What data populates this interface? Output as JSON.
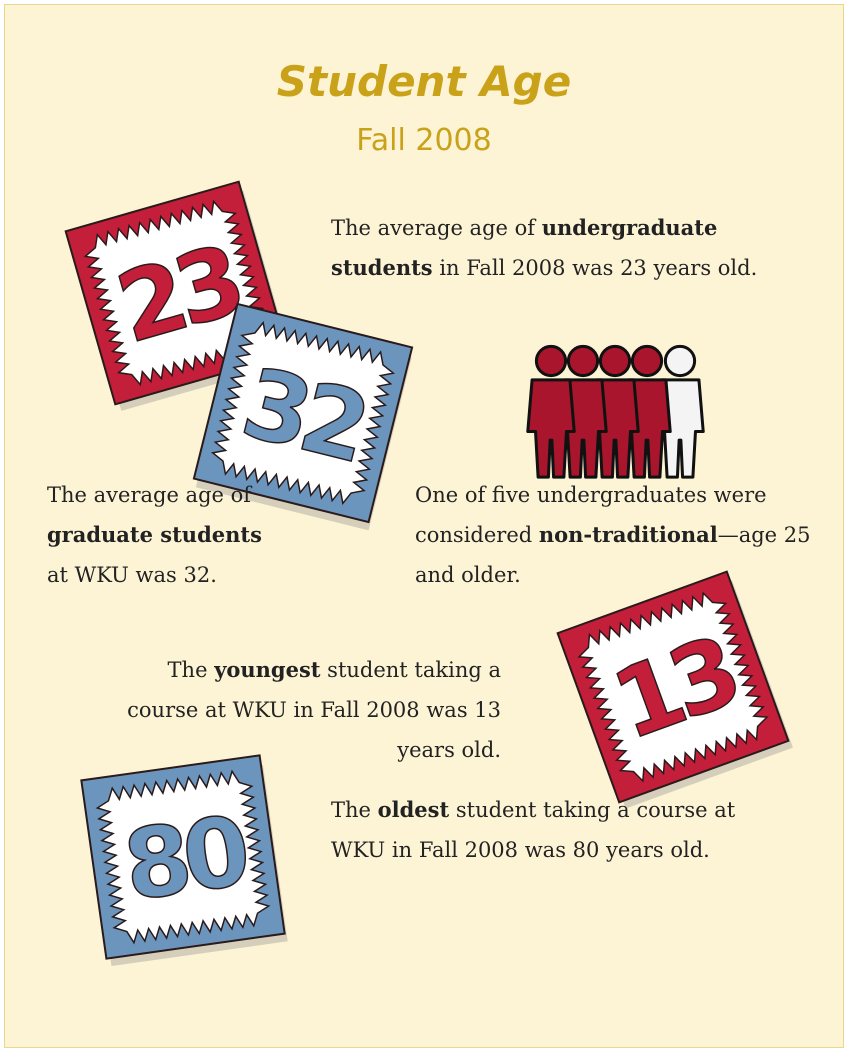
{
  "header": {
    "title": "Student Age",
    "subtitle": "Fall 2008"
  },
  "facts": [
    {
      "badge": 23,
      "before": "The average age of ",
      "bold": "undergraduate students",
      "after": " in Fall 2008 was 23 years old."
    },
    {
      "badge": 32,
      "before": "The average age of ",
      "bold": "graduate students",
      "after": " at WKU was 32."
    },
    {
      "before": "One of five undergraduates were considered ",
      "bold": "non-traditional",
      "after": "—age 25 and older."
    },
    {
      "badge": 13,
      "before": "The ",
      "bold": "youngest",
      "after": " student taking a course at WKU in Fall 2008 was 13 years old."
    },
    {
      "badge": 80,
      "before": "The ",
      "bold": "oldest",
      "after": " student taking a course at WKU in Fall 2008 was 80 years old."
    }
  ]
}
